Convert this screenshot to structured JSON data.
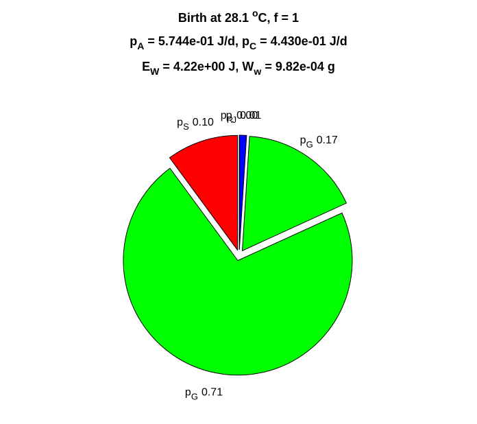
{
  "chart_data": {
    "type": "pie",
    "title": [
      [
        {
          "text": "Birth at 28.1 "
        },
        {
          "text": "o",
          "sup": true
        },
        {
          "text": "C, f = 1"
        }
      ],
      [
        {
          "text": "p"
        },
        {
          "text": "A",
          "sub": true
        },
        {
          "text": " = 5.744e-01 J/d, p"
        },
        {
          "text": "C",
          "sub": true
        },
        {
          "text": " = 4.430e-01 J/d"
        }
      ],
      [
        {
          "text": "E"
        },
        {
          "text": "W",
          "sub": true
        },
        {
          "text": " = 4.22e+00 J, W"
        },
        {
          "text": "w",
          "sub": true
        },
        {
          "text": " = 9.82e-04 g"
        }
      ]
    ],
    "labels": [
      {
        "name": "p",
        "sub": "R"
      },
      {
        "name": "p",
        "sub": "J"
      },
      {
        "name": "p",
        "sub": "G"
      },
      {
        "name": "p",
        "sub": "G"
      },
      {
        "name": "p",
        "sub": "S"
      }
    ],
    "values": [
      0.0,
      0.01,
      0.17,
      0.71,
      0.1
    ],
    "value_labels": [
      "0.00",
      "0.01",
      "0.17",
      "0.71",
      "0.10"
    ],
    "colors": [
      "#0000ff",
      "#0000ff",
      "#00ff00",
      "#00ff00",
      "#ff0000"
    ]
  }
}
